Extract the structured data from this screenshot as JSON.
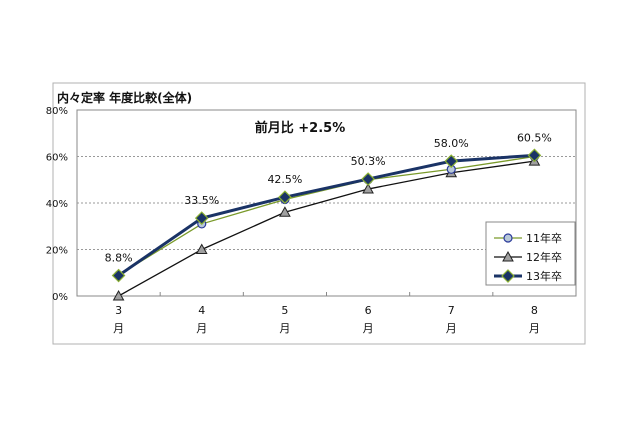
{
  "chart_data": {
    "type": "line",
    "title": "内々定率  年度比較(全体)",
    "annotation": "前月比  +2.5%",
    "categories": [
      "3",
      "4",
      "5",
      "6",
      "7",
      "8"
    ],
    "category_suffix": "月",
    "ylim": [
      0,
      80
    ],
    "yticks": [
      "0%",
      "20%",
      "40%",
      "60%",
      "80%"
    ],
    "ytick_values": [
      0,
      20,
      40,
      60,
      80
    ],
    "grid": true,
    "legend_position": "right",
    "series": [
      {
        "name": "11年卒",
        "values": [
          9.0,
          31.0,
          41.5,
          50.0,
          54.5,
          60.0
        ],
        "color": "#7a9a2a",
        "marker": "circle",
        "marker_fill": "#b8c8d8",
        "marker_stroke": "#2a3a9a"
      },
      {
        "name": "12年卒",
        "values": [
          0.0,
          20.0,
          36.0,
          46.0,
          53.0,
          58.0
        ],
        "color": "#111111",
        "marker": "triangle",
        "marker_fill": "#a0a0a0",
        "marker_stroke": "#222222"
      },
      {
        "name": "13年卒",
        "values": [
          8.8,
          33.5,
          42.5,
          50.3,
          58.0,
          60.5
        ],
        "color": "#1a3366",
        "marker": "diamond",
        "marker_fill": "#1a3366",
        "marker_stroke": "#8ab030"
      }
    ],
    "data_labels": [
      "8.8%",
      "33.5%",
      "42.5%",
      "50.3%",
      "58.0%",
      "60.5%"
    ]
  }
}
